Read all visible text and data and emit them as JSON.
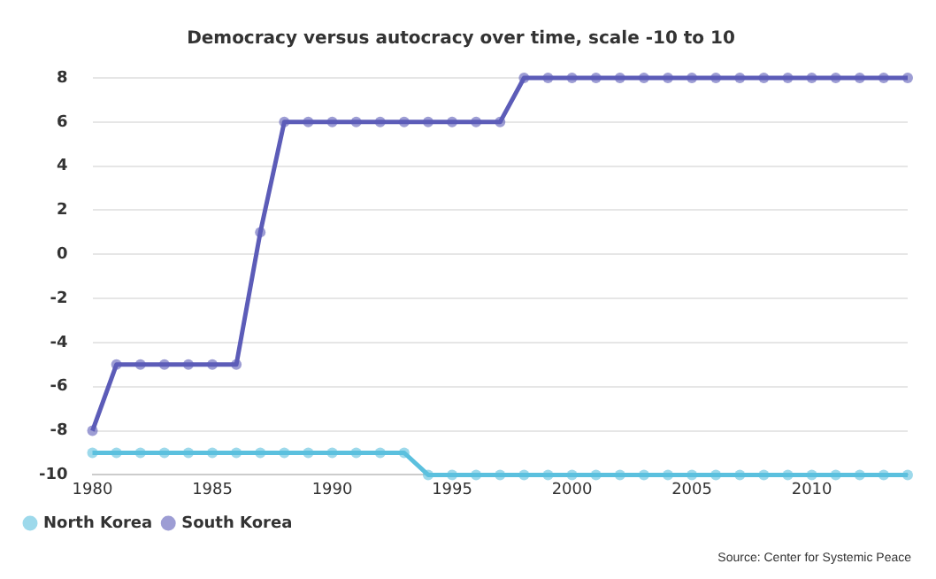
{
  "chart_data": {
    "type": "line",
    "title": "Democracy versus autocracy over time, scale -10 to 10",
    "x": [
      1980,
      1981,
      1982,
      1983,
      1984,
      1985,
      1986,
      1987,
      1988,
      1989,
      1990,
      1991,
      1992,
      1993,
      1994,
      1995,
      1996,
      1997,
      1998,
      1999,
      2000,
      2001,
      2002,
      2003,
      2004,
      2005,
      2006,
      2007,
      2008,
      2009,
      2010,
      2011,
      2012,
      2013,
      2014
    ],
    "series": [
      {
        "name": "North Korea",
        "color": "#5bc0de",
        "values": [
          -9,
          -9,
          -9,
          -9,
          -9,
          -9,
          -9,
          -9,
          -9,
          -9,
          -9,
          -9,
          -9,
          -9,
          -10,
          -10,
          -10,
          -10,
          -10,
          -10,
          -10,
          -10,
          -10,
          -10,
          -10,
          -10,
          -10,
          -10,
          -10,
          -10,
          -10,
          -10,
          -10,
          -10,
          -10
        ]
      },
      {
        "name": "South Korea",
        "color": "#5c5cb8",
        "values": [
          -8,
          -5,
          -5,
          -5,
          -5,
          -5,
          -5,
          1,
          6,
          6,
          6,
          6,
          6,
          6,
          6,
          6,
          6,
          6,
          8,
          8,
          8,
          8,
          8,
          8,
          8,
          8,
          8,
          8,
          8,
          8,
          8,
          8,
          8,
          8,
          8
        ]
      }
    ],
    "xlim": [
      1980,
      2014
    ],
    "xticks": [
      1980,
      1985,
      1990,
      1995,
      2000,
      2005,
      2010
    ],
    "ylim": [
      -10,
      8
    ],
    "yticks": [
      -10,
      -8,
      -6,
      -4,
      -2,
      0,
      2,
      4,
      6,
      8
    ],
    "grid": "y",
    "legend": "bottom left",
    "marker": "circle",
    "line_style": "solid",
    "annotations": [
      "Source: Center for Systemic Peace"
    ]
  }
}
